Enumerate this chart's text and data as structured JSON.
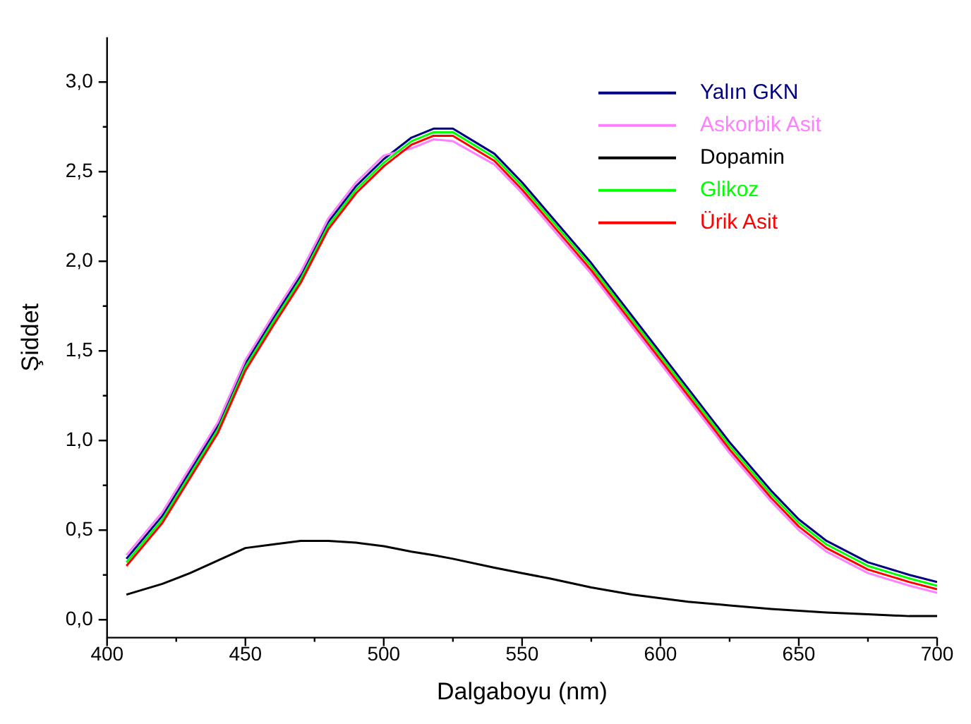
{
  "chart_data": {
    "type": "line",
    "xlabel": "Dalgaboyu (nm)",
    "ylabel": "Şiddet",
    "xlim": [
      400,
      700
    ],
    "xticks": [
      400,
      450,
      500,
      550,
      600,
      650,
      700
    ],
    "ylim": [
      -0.1,
      3.25
    ],
    "yticks": [
      {
        "value": 0,
        "label": "0,0"
      },
      {
        "value": 0.5,
        "label": "0,5"
      },
      {
        "value": 1,
        "label": "1,0"
      },
      {
        "value": 1.5,
        "label": "1,5"
      },
      {
        "value": 2,
        "label": "2,0"
      },
      {
        "value": 2.5,
        "label": "2,5"
      },
      {
        "value": 3,
        "label": "3,0"
      }
    ],
    "grid": false,
    "legend": "top right",
    "marker": "none",
    "line_style": "solid",
    "x": [
      407,
      420,
      430,
      440,
      450,
      460,
      470,
      480,
      490,
      500,
      510,
      518,
      525,
      540,
      550,
      560,
      575,
      590,
      600,
      610,
      625,
      640,
      650,
      660,
      675,
      690,
      700
    ],
    "series": [
      {
        "name": "Yalın GKN",
        "color": "#000080",
        "values": [
          0.34,
          0.58,
          0.83,
          1.08,
          1.43,
          1.68,
          1.92,
          2.22,
          2.42,
          2.57,
          2.69,
          2.74,
          2.74,
          2.6,
          2.44,
          2.26,
          1.99,
          1.69,
          1.49,
          1.29,
          0.99,
          0.72,
          0.56,
          0.44,
          0.32,
          0.25,
          0.21
        ]
      },
      {
        "name": "Askorbik Asit",
        "color": "#ff80ff",
        "values": [
          0.36,
          0.6,
          0.85,
          1.1,
          1.45,
          1.7,
          1.94,
          2.24,
          2.44,
          2.59,
          2.63,
          2.68,
          2.67,
          2.54,
          2.38,
          2.2,
          1.93,
          1.63,
          1.43,
          1.23,
          0.93,
          0.66,
          0.5,
          0.38,
          0.26,
          0.19,
          0.15
        ]
      },
      {
        "name": "Dopamin",
        "color": "#000000",
        "values": [
          0.14,
          0.2,
          0.26,
          0.33,
          0.4,
          0.42,
          0.44,
          0.44,
          0.43,
          0.41,
          0.38,
          0.36,
          0.34,
          0.29,
          0.26,
          0.23,
          0.18,
          0.14,
          0.12,
          0.1,
          0.08,
          0.06,
          0.05,
          0.04,
          0.03,
          0.02,
          0.02
        ]
      },
      {
        "name": "Glikoz",
        "color": "#00ff00",
        "values": [
          0.32,
          0.56,
          0.81,
          1.06,
          1.41,
          1.66,
          1.9,
          2.2,
          2.4,
          2.55,
          2.67,
          2.72,
          2.72,
          2.58,
          2.42,
          2.24,
          1.97,
          1.67,
          1.47,
          1.27,
          0.97,
          0.7,
          0.54,
          0.42,
          0.3,
          0.23,
          0.19
        ]
      },
      {
        "name": "Ürik Asit",
        "color": "#ff0000",
        "values": [
          0.3,
          0.54,
          0.79,
          1.04,
          1.39,
          1.64,
          1.88,
          2.18,
          2.38,
          2.53,
          2.65,
          2.7,
          2.7,
          2.56,
          2.4,
          2.22,
          1.95,
          1.65,
          1.45,
          1.25,
          0.95,
          0.68,
          0.52,
          0.4,
          0.28,
          0.21,
          0.17
        ]
      }
    ]
  }
}
